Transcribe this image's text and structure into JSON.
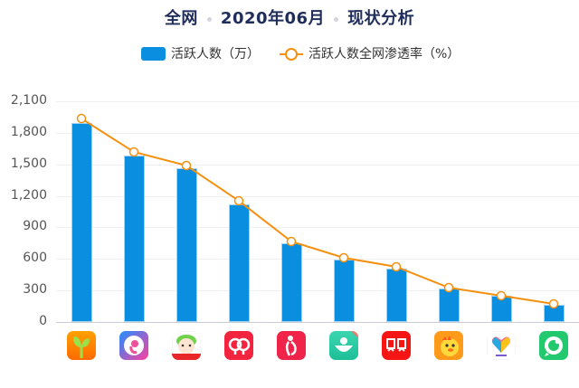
{
  "title": {
    "part1": "全网",
    "part2": "2020年06月",
    "part3": "现状分析"
  },
  "legend": {
    "bar_label": "活跃人数（万）",
    "line_label": "活跃人数全网渗透率（%）"
  },
  "colors": {
    "bar": "#0a8fe0",
    "line": "#f5900f",
    "title": "#1f2d5a"
  },
  "y_axis": {
    "ticks": [
      "2,100",
      "1,800",
      "1,500",
      "1,200",
      "900",
      "600",
      "300",
      "0"
    ]
  },
  "chart_data": {
    "type": "bar",
    "title": "全网 · 2020年06月 · 现状分析",
    "categories": [
      "app-1-sprout",
      "app-2-fetus",
      "app-3-baby-2019",
      "app-4-red-circles",
      "app-5-pregnant",
      "app-6-teal-face",
      "app-7-beibei",
      "app-8-chick",
      "app-9-heart",
      "app-10-green-bubble"
    ],
    "series": [
      {
        "name": "活跃人数（万）",
        "type": "bar",
        "values": [
          1893,
          1584,
          1459,
          1123,
          749,
          594,
          508,
          318,
          250,
          166
        ]
      },
      {
        "name": "活跃人数全网渗透率（%）",
        "type": "line",
        "note": "no secondary axis shown; values expressed on primary scale position",
        "values": [
          1936,
          1618,
          1489,
          1153,
          766,
          611,
          525,
          327,
          250,
          172
        ]
      }
    ],
    "xlabel": "",
    "ylabel": "",
    "ylim": [
      0,
      2100
    ],
    "yticks": [
      0,
      300,
      600,
      900,
      1200,
      1500,
      1800,
      2100
    ],
    "grid": true,
    "legend_position": "top"
  },
  "apps": [
    {
      "name": "sprout-app",
      "bg": "#ff8a00"
    },
    {
      "name": "fetus-app",
      "bg": "#8a5cf0"
    },
    {
      "name": "baby-2019-app",
      "bg": "#ffffff"
    },
    {
      "name": "red-circles-app",
      "bg": "#f2243f"
    },
    {
      "name": "pregnant-app",
      "bg": "#f0234a"
    },
    {
      "name": "teal-face-app",
      "bg": "#2ccaa5"
    },
    {
      "name": "beibei-app",
      "bg": "#f51515"
    },
    {
      "name": "chick-app",
      "bg": "#ff9a1a"
    },
    {
      "name": "heart-app",
      "bg": "#ffffff"
    },
    {
      "name": "green-bubble-app",
      "bg": "#22c96e"
    }
  ]
}
